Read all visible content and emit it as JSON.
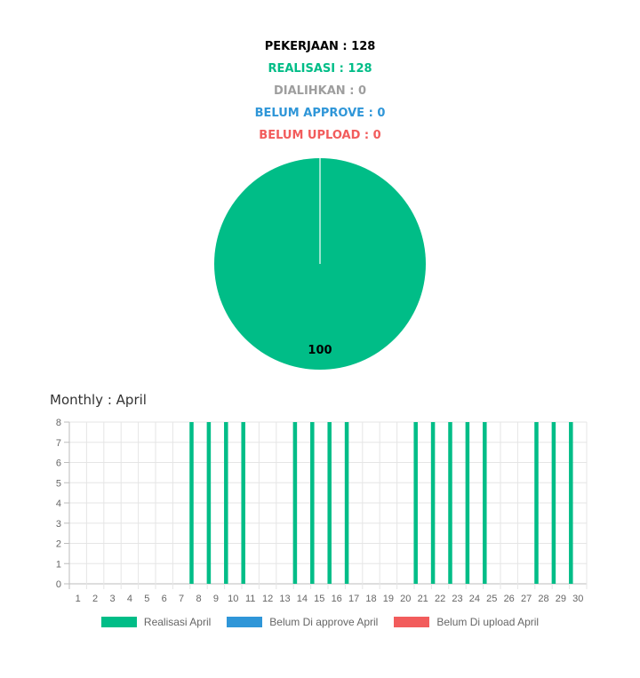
{
  "summary": {
    "pekerjaan": {
      "label": "PEKERJAAN",
      "value": "128",
      "color": "#000000"
    },
    "realisasi": {
      "label": "REALISASI",
      "value": "128",
      "color": "#00bd87"
    },
    "dialihkan": {
      "label": "DIALIHKAN",
      "value": "0",
      "color": "#9e9e9e"
    },
    "belum_approve": {
      "label": "BELUM APPROVE",
      "value": "0",
      "color": "#2f96d8"
    },
    "belum_upload": {
      "label": "BELUM UPLOAD",
      "value": "0",
      "color": "#f25c5c"
    }
  },
  "monthly": {
    "label": "Monthly",
    "month": "April"
  },
  "chart_data": [
    {
      "type": "pie",
      "slices": [
        {
          "value": 100,
          "color": "#00bd87"
        },
        {
          "value": 0,
          "color": "#2f96d8"
        },
        {
          "value": 0,
          "color": "#f25c5c"
        }
      ],
      "data_label": "100"
    },
    {
      "type": "bar",
      "categories": [
        "1",
        "2",
        "3",
        "4",
        "5",
        "6",
        "7",
        "8",
        "9",
        "10",
        "11",
        "12",
        "13",
        "14",
        "15",
        "16",
        "17",
        "18",
        "19",
        "20",
        "21",
        "22",
        "23",
        "24",
        "25",
        "26",
        "27",
        "28",
        "29",
        "30"
      ],
      "series": [
        {
          "name": "Realisasi April",
          "color": "#00bd87",
          "values": [
            0,
            0,
            0,
            0,
            0,
            0,
            0,
            8,
            8,
            8,
            8,
            0,
            0,
            8,
            8,
            8,
            8,
            0,
            0,
            0,
            8,
            8,
            8,
            8,
            8,
            0,
            0,
            8,
            8,
            8
          ]
        },
        {
          "name": "Belum Di approve April",
          "color": "#2f96d8",
          "values": [
            0,
            0,
            0,
            0,
            0,
            0,
            0,
            0,
            0,
            0,
            0,
            0,
            0,
            0,
            0,
            0,
            0,
            0,
            0,
            0,
            0,
            0,
            0,
            0,
            0,
            0,
            0,
            0,
            0,
            0
          ]
        },
        {
          "name": "Belum Di upload April",
          "color": "#f25c5c",
          "values": [
            0,
            0,
            0,
            0,
            0,
            0,
            0,
            0,
            0,
            0,
            0,
            0,
            0,
            0,
            0,
            0,
            0,
            0,
            0,
            0,
            0,
            0,
            0,
            0,
            0,
            0,
            0,
            0,
            0,
            0
          ]
        }
      ],
      "yticks": [
        0,
        1,
        2,
        3,
        4,
        5,
        6,
        7,
        8
      ],
      "ylim": [
        0,
        8
      ],
      "grid": true,
      "legend": "bottom"
    }
  ]
}
